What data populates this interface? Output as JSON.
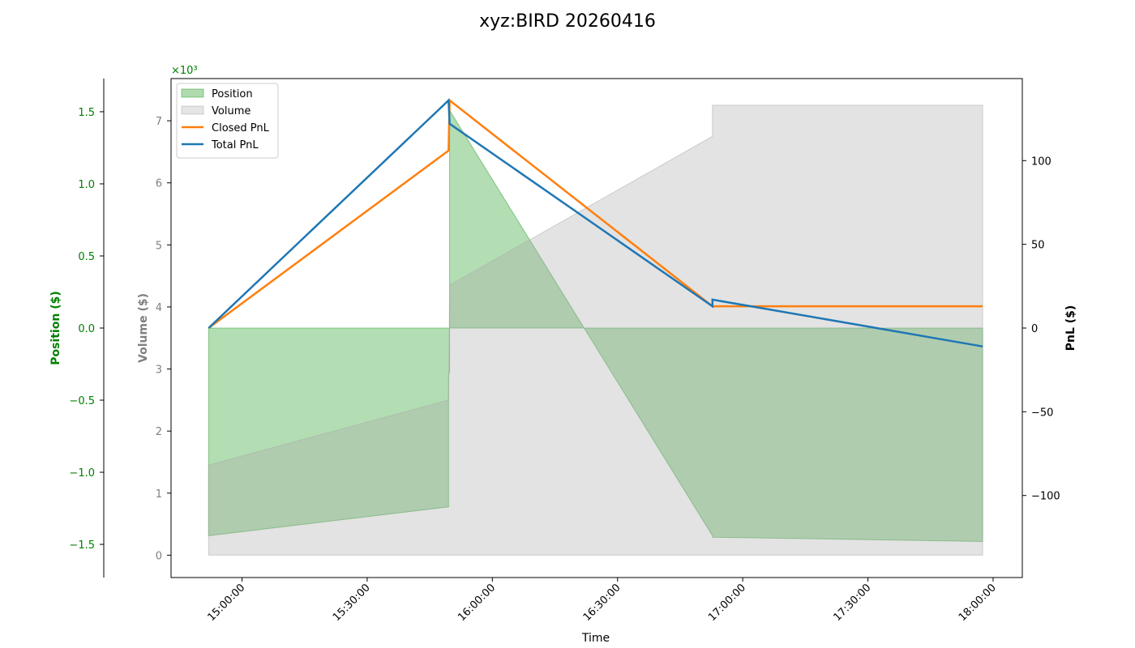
{
  "chart_data": {
    "type": "area",
    "title": "xyz:BIRD 20260416",
    "xlabel": "Time",
    "x_ticks": [
      "15:00:00",
      "15:30:00",
      "16:00:00",
      "16:30:00",
      "17:00:00",
      "17:30:00",
      "18:00:00"
    ],
    "axes": {
      "position": {
        "label": "Position ($)",
        "color": "#008000",
        "scale_note": "",
        "ylim": [
          -1.73,
          1.73
        ],
        "ticks": [
          -1.5,
          -1.0,
          -0.5,
          0.0,
          0.5,
          1.0,
          1.5
        ],
        "tick_labels": [
          "−1.5",
          "−1.0",
          "−0.5",
          "0.0",
          "0.5",
          "1.0",
          "1.5"
        ]
      },
      "volume": {
        "label": "Volume ($)",
        "color": "#808080",
        "scale_note": "×10³",
        "ylim": [
          -0.36,
          7.68
        ],
        "ticks": [
          0,
          1,
          2,
          3,
          4,
          5,
          6,
          7
        ],
        "tick_labels": [
          "0",
          "1",
          "2",
          "3",
          "4",
          "5",
          "6",
          "7"
        ]
      },
      "pnl": {
        "label": "PnL ($)",
        "color": "#000000",
        "ylim": [
          -149,
          149
        ],
        "ticks": [
          -100,
          -50,
          0,
          50,
          100
        ],
        "tick_labels": [
          "−100",
          "−50",
          "0",
          "50",
          "100"
        ]
      }
    },
    "legend": {
      "placement": "top-left",
      "entries": [
        {
          "label": "Position",
          "kind": "patch",
          "color": "#2ca02c",
          "opacity": 0.38
        },
        {
          "label": "Volume",
          "kind": "patch",
          "color": "#a9a9a9",
          "opacity": 0.3
        },
        {
          "label": "Closed PnL",
          "kind": "line",
          "color": "#ff7f0e"
        },
        {
          "label": "Total PnL",
          "kind": "line",
          "color": "#1f77b4"
        }
      ]
    },
    "series": [
      {
        "name": "Position",
        "axis": "position",
        "color": "#2ca02c",
        "opacity": 0.36,
        "points": [
          [
            "14:52:00",
            0.0
          ],
          [
            "14:52:00",
            -1.44
          ],
          [
            "14:52:00",
            -1.44
          ],
          [
            "15:49:30",
            -1.24
          ],
          [
            "15:49:30",
            -0.31
          ],
          [
            "15:49:45",
            -0.31
          ],
          [
            "15:49:45",
            1.51
          ],
          [
            "16:52:45",
            -1.44
          ],
          [
            "16:52:45",
            -1.45
          ],
          [
            "17:57:30",
            -1.48
          ],
          [
            "17:57:30",
            0.0
          ]
        ]
      },
      {
        "name": "Volume",
        "axis": "volume",
        "color": "#a9a9a9",
        "opacity": 0.32,
        "points": [
          [
            "14:52:00",
            0.0
          ],
          [
            "14:52:00",
            1.45
          ],
          [
            "15:49:30",
            2.5
          ],
          [
            "15:49:45",
            4.35
          ],
          [
            "16:52:45",
            6.75
          ],
          [
            "16:52:45",
            7.25
          ],
          [
            "17:57:30",
            7.25
          ],
          [
            "17:57:30",
            0.0
          ]
        ]
      },
      {
        "name": "Closed PnL",
        "axis": "pnl",
        "color": "#ff7f0e",
        "points": [
          [
            "14:52:00",
            0.0
          ],
          [
            "15:49:30",
            106.0
          ],
          [
            "15:49:45",
            136.0
          ],
          [
            "16:52:45",
            13.0
          ],
          [
            "17:57:30",
            13.0
          ]
        ]
      },
      {
        "name": "Total PnL",
        "axis": "pnl",
        "color": "#1f77b4",
        "points": [
          [
            "14:52:00",
            0.0
          ],
          [
            "15:49:30",
            136.0
          ],
          [
            "15:49:45",
            122.0
          ],
          [
            "16:52:45",
            13.0
          ],
          [
            "16:52:45",
            17.0
          ],
          [
            "17:57:30",
            -11.0
          ]
        ]
      }
    ],
    "x_range": [
      "14:43:00",
      "18:07:00"
    ],
    "grid": false
  }
}
